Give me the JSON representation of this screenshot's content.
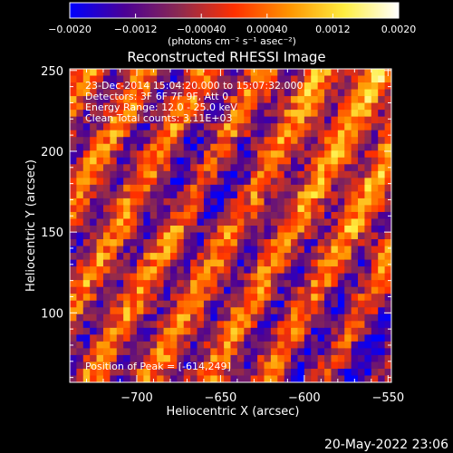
{
  "chart_data": {
    "type": "heatmap",
    "title": "Reconstructed RHESSI Image",
    "xlabel": "Heliocentric X (arcsec)",
    "ylabel": "Heliocentric Y (arcsec)",
    "xlim": [
      -740,
      -548
    ],
    "ylim": [
      57,
      251
    ],
    "xticks": [
      -700,
      -650,
      -600,
      -550
    ],
    "xtick_labels": [
      "−700",
      "−650",
      "−600",
      "−550"
    ],
    "yticks": [
      100,
      150,
      200,
      250
    ],
    "ytick_labels": [
      "100",
      "150",
      "200",
      "250"
    ],
    "colorbar": {
      "range": [
        -0.002,
        0.002
      ],
      "ticks": [
        -0.002,
        -0.0012,
        -0.0004,
        0.0004,
        0.0012,
        0.002
      ],
      "tick_labels": [
        "−0.0020",
        "−0.0012",
        "−0.00040",
        "0.00040",
        "0.0012",
        "0.0020"
      ],
      "label": "(photons cm⁻² s⁻¹ asec⁻²)",
      "colors": [
        "#0000ff",
        "#4b0096",
        "#8c2a50",
        "#ff3000",
        "#ff9400",
        "#ffee40",
        "#ffffff"
      ]
    },
    "annotations": {
      "time_range": "23-Dec-2014 15:04:20.000 to 15:07:32.000",
      "detectors": "Detectors: 3F 6F 7F 9F, Att 0",
      "energy": "Energy Range: 12.0 - 25.0 keV",
      "method": "Clean     Total counts: 3.11E+03",
      "peak": "Position of Peak = [-614,249]"
    },
    "peak": [
      -614,
      249
    ],
    "grid": false
  },
  "footer": {
    "date": "20-May-2022 23:06"
  }
}
